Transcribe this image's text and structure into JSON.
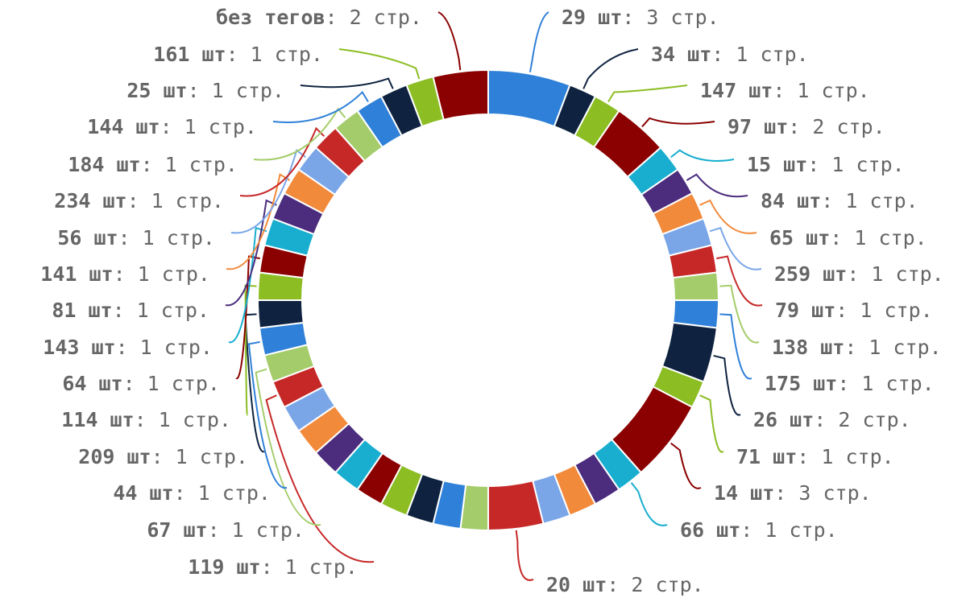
{
  "chart_data": {
    "type": "pie",
    "style": "donut",
    "title": "",
    "separator": ": ",
    "grid": false,
    "legend": "none",
    "slices": [
      {
        "label": "29 шт",
        "value_text": "3 стр.",
        "value": 3,
        "color": "#2f80d8",
        "side": "right"
      },
      {
        "label": "34 шт",
        "value_text": "1 стр.",
        "value": 1,
        "color": "#0f2340",
        "side": "right"
      },
      {
        "label": "147 шт",
        "value_text": "1 стр.",
        "value": 1,
        "color": "#8cbd23",
        "side": "right"
      },
      {
        "label": "97 шт",
        "value_text": "2 стр.",
        "value": 2,
        "color": "#8b0000",
        "side": "right"
      },
      {
        "label": "15 шт",
        "value_text": "1 стр.",
        "value": 1,
        "color": "#19aecf",
        "side": "right"
      },
      {
        "label": "84 шт",
        "value_text": "1 стр.",
        "value": 1,
        "color": "#4b2c7d",
        "side": "right"
      },
      {
        "label": "65 шт",
        "value_text": "1 стр.",
        "value": 1,
        "color": "#f28a3c",
        "side": "right"
      },
      {
        "label": "259 шт",
        "value_text": "1 стр.",
        "value": 1,
        "color": "#7aa6e8",
        "side": "right"
      },
      {
        "label": "79 шт",
        "value_text": "1 стр.",
        "value": 1,
        "color": "#c62828",
        "side": "right"
      },
      {
        "label": "138 шт",
        "value_text": "1 стр.",
        "value": 1,
        "color": "#a4cc6a",
        "side": "right"
      },
      {
        "label": "175 шт",
        "value_text": "1 стр.",
        "value": 1,
        "color": "#2f80d8",
        "side": "right"
      },
      {
        "label": "26 шт",
        "value_text": "2 стр.",
        "value": 2,
        "color": "#0f2340",
        "side": "right"
      },
      {
        "label": "71 шт",
        "value_text": "1 стр.",
        "value": 1,
        "color": "#8cbd23",
        "side": "right"
      },
      {
        "label": "14 шт",
        "value_text": "3 стр.",
        "value": 3,
        "color": "#8b0000",
        "side": "right"
      },
      {
        "label": "66 шт",
        "value_text": "1 стр.",
        "value": 1,
        "color": "#19aecf",
        "side": "right"
      },
      {
        "label": "",
        "value_text": "",
        "value": 1,
        "color": "#4b2c7d",
        "side": "none"
      },
      {
        "label": "",
        "value_text": "",
        "value": 1,
        "color": "#f28a3c",
        "side": "none"
      },
      {
        "label": "",
        "value_text": "",
        "value": 1,
        "color": "#7aa6e8",
        "side": "none"
      },
      {
        "label": "20 шт",
        "value_text": "2 стр.",
        "value": 2,
        "color": "#c62828",
        "side": "bottom"
      },
      {
        "label": "",
        "value_text": "",
        "value": 1,
        "color": "#a4cc6a",
        "side": "none"
      },
      {
        "label": "",
        "value_text": "",
        "value": 1,
        "color": "#2f80d8",
        "side": "none"
      },
      {
        "label": "",
        "value_text": "",
        "value": 1,
        "color": "#0f2340",
        "side": "none"
      },
      {
        "label": "",
        "value_text": "",
        "value": 1,
        "color": "#8cbd23",
        "side": "none"
      },
      {
        "label": "",
        "value_text": "",
        "value": 1,
        "color": "#8b0000",
        "side": "none"
      },
      {
        "label": "",
        "value_text": "",
        "value": 1,
        "color": "#19aecf",
        "side": "none"
      },
      {
        "label": "",
        "value_text": "",
        "value": 1,
        "color": "#4b2c7d",
        "side": "none"
      },
      {
        "label": "",
        "value_text": "",
        "value": 1,
        "color": "#f28a3c",
        "side": "none"
      },
      {
        "label": "",
        "value_text": "",
        "value": 1,
        "color": "#7aa6e8",
        "side": "none"
      },
      {
        "label": "119 шт",
        "value_text": "1 стр.",
        "value": 1,
        "color": "#c62828",
        "side": "left"
      },
      {
        "label": "67 шт",
        "value_text": "1 стр.",
        "value": 1,
        "color": "#a4cc6a",
        "side": "left"
      },
      {
        "label": "44 шт",
        "value_text": "1 стр.",
        "value": 1,
        "color": "#2f80d8",
        "side": "left"
      },
      {
        "label": "209 шт",
        "value_text": "1 стр.",
        "value": 1,
        "color": "#0f2340",
        "side": "left"
      },
      {
        "label": "114 шт",
        "value_text": "1 стр.",
        "value": 1,
        "color": "#8cbd23",
        "side": "left"
      },
      {
        "label": "64 шт",
        "value_text": "1 стр.",
        "value": 1,
        "color": "#8b0000",
        "side": "left"
      },
      {
        "label": "143 шт",
        "value_text": "1 стр.",
        "value": 1,
        "color": "#19aecf",
        "side": "left"
      },
      {
        "label": "81 шт",
        "value_text": "1 стр.",
        "value": 1,
        "color": "#4b2c7d",
        "side": "left"
      },
      {
        "label": "141 шт",
        "value_text": "1 стр.",
        "value": 1,
        "color": "#f28a3c",
        "side": "left"
      },
      {
        "label": "56 шт",
        "value_text": "1 стр.",
        "value": 1,
        "color": "#7aa6e8",
        "side": "left"
      },
      {
        "label": "234 шт",
        "value_text": "1 стр.",
        "value": 1,
        "color": "#c62828",
        "side": "left"
      },
      {
        "label": "184 шт",
        "value_text": "1 стр.",
        "value": 1,
        "color": "#a4cc6a",
        "side": "left"
      },
      {
        "label": "144 шт",
        "value_text": "1 стр.",
        "value": 1,
        "color": "#2f80d8",
        "side": "left"
      },
      {
        "label": "25 шт",
        "value_text": "1 стр.",
        "value": 1,
        "color": "#0f2340",
        "side": "left"
      },
      {
        "label": "161 шт",
        "value_text": "1 стр.",
        "value": 1,
        "color": "#8cbd23",
        "side": "left"
      },
      {
        "label": "без тегов",
        "value_text": "2 стр.",
        "value": 2,
        "color": "#8b0000",
        "side": "left"
      }
    ]
  }
}
